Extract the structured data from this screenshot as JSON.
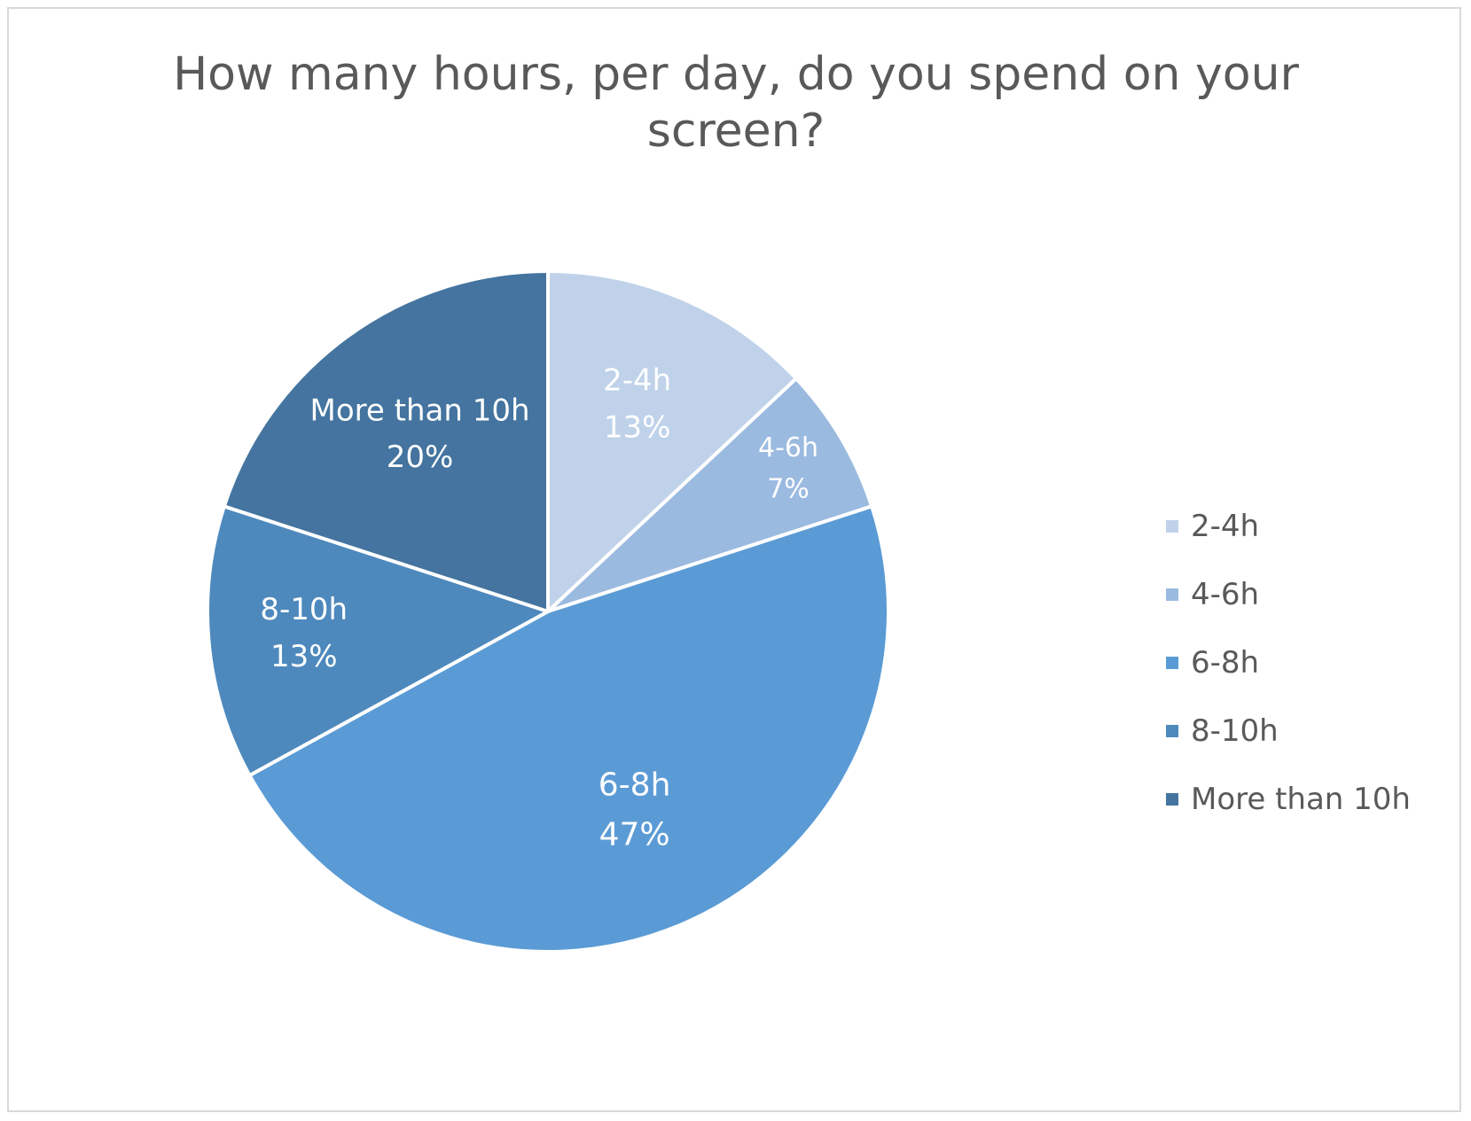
{
  "chart_data": {
    "type": "pie",
    "title": "How many hours, per day, do you spend on your screen?",
    "categories": [
      "2-4h",
      "4-6h",
      "6-8h",
      "8-10h",
      "More than 10h"
    ],
    "values": [
      13,
      7,
      47,
      13,
      20
    ],
    "value_labels": [
      "13%",
      "7%",
      "47%",
      "13%",
      "20%"
    ],
    "colors": [
      "#bfd2ea",
      "#9bbae0",
      "#5b9bd5",
      "#4e89bd",
      "#44749f"
    ],
    "legend_position": "right",
    "start_angle": "top",
    "direction": "clockwise"
  }
}
